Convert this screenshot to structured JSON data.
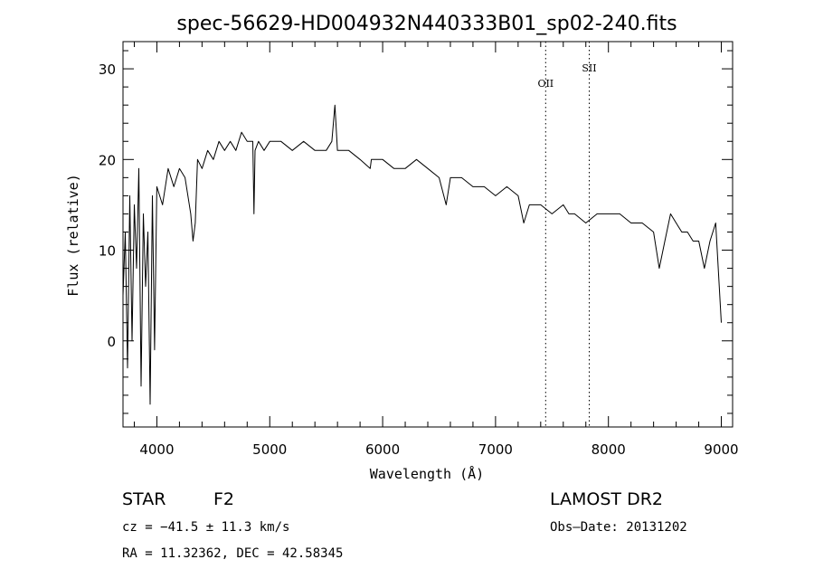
{
  "chart_data": {
    "type": "line",
    "title": "spec-56629-HD004932N440333B01_sp02-240.fits",
    "xlabel": "Wavelength (Å)",
    "ylabel": "Flux (relative)",
    "xlim": [
      3700,
      9100
    ],
    "ylim": [
      -9.5,
      33
    ],
    "x_ticks": [
      4000,
      5000,
      6000,
      7000,
      8000,
      9000
    ],
    "y_ticks": [
      0,
      10,
      20,
      30
    ],
    "grid": false,
    "series": [
      {
        "x": [
          3700,
          3720,
          3740,
          3760,
          3780,
          3800,
          3820,
          3840,
          3860,
          3880,
          3900,
          3920,
          3940,
          3960,
          3980,
          4000,
          4050,
          4100,
          4150,
          4200,
          4250,
          4300,
          4320,
          4340,
          4360,
          4400,
          4450,
          4500,
          4550,
          4600,
          4650,
          4700,
          4750,
          4800,
          4850,
          4860,
          4870,
          4900,
          4950,
          5000,
          5100,
          5200,
          5300,
          5400,
          5500,
          5550,
          5577,
          5600,
          5700,
          5800,
          5890,
          5900,
          6000,
          6100,
          6200,
          6300,
          6400,
          6500,
          6563,
          6600,
          6700,
          6800,
          6900,
          7000,
          7100,
          7200,
          7250,
          7300,
          7400,
          7500,
          7600,
          7650,
          7700,
          7800,
          7900,
          8000,
          8100,
          8200,
          8300,
          8400,
          8450,
          8500,
          8550,
          8600,
          8650,
          8700,
          8750,
          8800,
          8850,
          8900,
          8950,
          9000
        ],
        "y": [
          5,
          12,
          -3,
          16,
          0,
          15,
          8,
          19,
          -5,
          14,
          6,
          12,
          -7,
          16,
          -1,
          17,
          15,
          19,
          17,
          19,
          18,
          14,
          11,
          13,
          20,
          19,
          21,
          20,
          22,
          21,
          22,
          21,
          23,
          22,
          22,
          14,
          21,
          22,
          21,
          22,
          22,
          21,
          22,
          21,
          21,
          22,
          26,
          21,
          21,
          20,
          19,
          20,
          20,
          19,
          19,
          20,
          19,
          18,
          15,
          18,
          18,
          17,
          17,
          16,
          17,
          16,
          13,
          15,
          15,
          14,
          15,
          14,
          14,
          13,
          14,
          14,
          14,
          13,
          13,
          12,
          8,
          11,
          14,
          13,
          12,
          12,
          11,
          11,
          8,
          11,
          13,
          2
        ]
      }
    ],
    "annotations": [
      {
        "label": "OII",
        "x": 7444
      },
      {
        "label": "SII",
        "x": 7830
      }
    ]
  },
  "info": {
    "object_class": "STAR",
    "subclass": "F2",
    "survey": "LAMOST DR2",
    "cz_text": "cz = −41.5 ± 11.3 km/s",
    "obs_date": "Obs–Date: 20131202",
    "coords_text": "RA =  11.32362, DEC =  42.58345"
  }
}
